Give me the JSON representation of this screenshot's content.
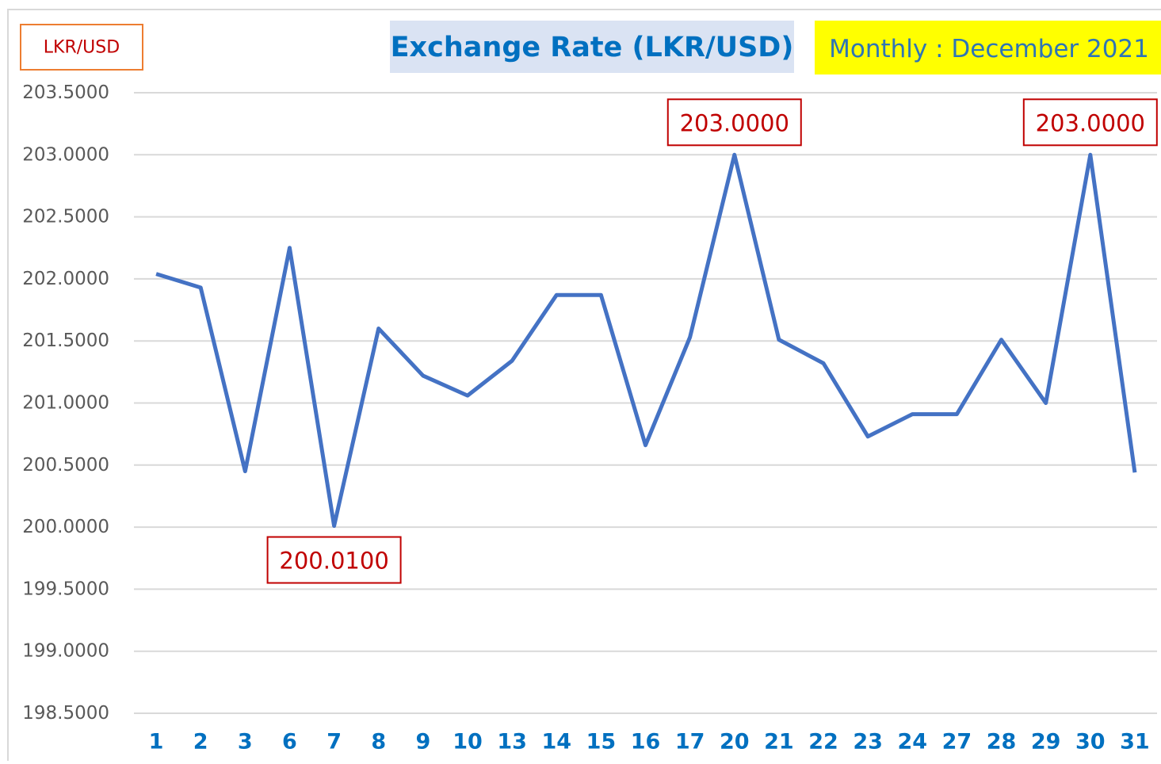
{
  "chart_data": {
    "type": "line",
    "title": "Exchange Rate (LKR/USD)",
    "subtitle": "Monthly : December 2021",
    "y_label": "LKR/USD",
    "categories": [
      "1",
      "2",
      "3",
      "6",
      "7",
      "8",
      "9",
      "10",
      "13",
      "14",
      "15",
      "16",
      "17",
      "20",
      "21",
      "22",
      "23",
      "24",
      "27",
      "28",
      "29",
      "30",
      "31"
    ],
    "values": [
      202.04,
      201.93,
      200.45,
      202.25,
      200.01,
      201.6,
      201.22,
      201.06,
      201.34,
      201.87,
      201.87,
      200.66,
      201.53,
      203.0,
      201.51,
      201.32,
      200.73,
      200.91,
      200.91,
      201.51,
      201.0,
      203.0,
      200.44
    ],
    "value_labels": [
      null,
      null,
      null,
      null,
      "200.0100",
      null,
      null,
      null,
      null,
      null,
      null,
      null,
      null,
      "203.0000",
      null,
      null,
      null,
      null,
      null,
      null,
      null,
      "203.0000",
      null
    ],
    "color": "#4472c4",
    "ylim": [
      198.5,
      203.5
    ],
    "yticks": [
      {
        "value": 198.5,
        "label": "198.5000"
      },
      {
        "value": 199,
        "label": "199.0000"
      },
      {
        "value": 199.5,
        "label": "199.5000"
      },
      {
        "value": 200,
        "label": "200.0000"
      },
      {
        "value": 200.5,
        "label": "200.5000"
      },
      {
        "value": 201,
        "label": "201.0000"
      },
      {
        "value": 201.5,
        "label": "201.5000"
      },
      {
        "value": 202,
        "label": "202.0000"
      },
      {
        "value": 202.5,
        "label": "202.5000"
      },
      {
        "value": 203,
        "label": "203.0000"
      },
      {
        "value": 203.5,
        "label": "203.5000"
      }
    ],
    "grid": true
  }
}
